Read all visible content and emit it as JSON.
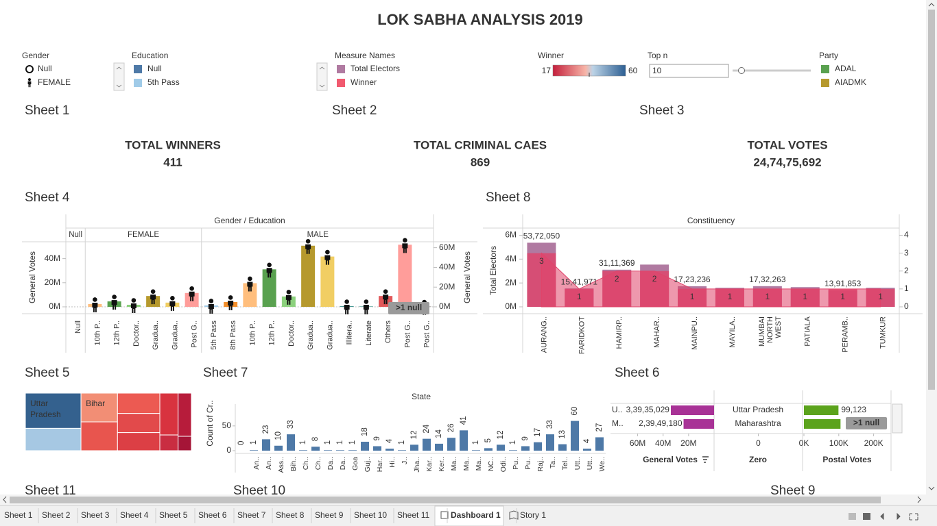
{
  "title": "LOK SABHA ANALYSIS 2019",
  "filters": {
    "gender": {
      "label": "Gender",
      "items": [
        "Null",
        "FEMALE"
      ]
    },
    "education": {
      "label": "Education",
      "items": [
        "Null",
        "5th Pass"
      ],
      "colors": [
        "#4e79a7",
        "#a0cbe8"
      ]
    },
    "measure_names": {
      "label": "Measure Names",
      "items": [
        "Total Electors",
        "Winner"
      ],
      "colors": [
        "#b07aa1",
        "#f15a6f"
      ]
    },
    "winner": {
      "label": "Winner",
      "range": [
        17,
        60
      ]
    },
    "top_n": {
      "label": "Top n",
      "value": 10
    },
    "party": {
      "label": "Party",
      "items": [
        "ADAL",
        "AIADMK"
      ],
      "colors": [
        "#59a14f",
        "#b6992d"
      ]
    }
  },
  "kpis": [
    {
      "sheet": "Sheet 1",
      "label": "TOTAL WINNERS",
      "value": "411"
    },
    {
      "sheet": "Sheet 2",
      "label": "TOTAL CRIMINAL CAES",
      "value": "869"
    },
    {
      "sheet": "Sheet 3",
      "label": "TOTAL VOTES",
      "value": "24,74,75,692"
    }
  ],
  "chart_data": [
    {
      "sheet": "Sheet 4",
      "type": "bar",
      "title": "Gender / Education",
      "ylabel": "General Votes",
      "y2label": "General Votes",
      "ylim": [
        0,
        54000000
      ],
      "yticks": [
        {
          "value": 0,
          "label": "0M"
        },
        {
          "value": 20000000,
          "label": "20M"
        },
        {
          "value": 40000000,
          "label": "40M"
        }
      ],
      "y2lim": [
        0,
        66000000
      ],
      "y2ticks": [
        {
          "value": 0,
          "label": "0M"
        },
        {
          "value": 20000000,
          "label": "20M"
        },
        {
          "value": 40000000,
          "label": "40M"
        },
        {
          "value": 60000000,
          "label": "60M"
        }
      ],
      "groups": [
        {
          "name": "Null",
          "axis": "y",
          "categories": [
            "Null"
          ],
          "values": [
            null
          ],
          "colors": [
            "#4e79a7"
          ]
        },
        {
          "name": "FEMALE",
          "axis": "y",
          "categories": [
            "10th P..",
            "12th P..",
            "Doctor..",
            "Gradua..",
            "Gradua..",
            "Post G.."
          ],
          "values": [
            2300000,
            4500000,
            1700000,
            9000000,
            3500000,
            11500000
          ],
          "colors": [
            "#ffbe7d",
            "#59a14f",
            "#8cd17d",
            "#b6992d",
            "#f1ce63",
            "#ff9d9a"
          ]
        },
        {
          "name": "MALE",
          "axis": "y2",
          "categories": [
            "5th Pass",
            "8th Pass",
            "10th P..",
            "12th P..",
            "Doctor..",
            "Gradua..",
            "Gradua..",
            "Illitera..",
            "Literate",
            "Others",
            "Post G..",
            "Post G.."
          ],
          "values": [
            1400000,
            4900000,
            24000000,
            38000000,
            10500000,
            62000000,
            51000000,
            700000,
            700000,
            11000000,
            63000000,
            300000
          ],
          "colors": [
            "#a0cbe8",
            "#f28e2b",
            "#ffbe7d",
            "#59a14f",
            "#8cd17d",
            "#b6992d",
            "#f1ce63",
            "#499894",
            "#86bcb6",
            "#e15759",
            "#ff9d9a",
            "#79706e"
          ]
        }
      ],
      "annotation": ">1 null"
    },
    {
      "sheet": "Sheet 8",
      "type": "bar_area",
      "title": "Constituency",
      "ylabel": "Total Electors",
      "categories": [
        "AURANG..",
        "FARIDKOT",
        "HAMIRP..",
        "MAHAR..",
        "MAINPU..",
        "MAYILA..",
        "MUMBAI NORTH WEST",
        "PATIALA",
        "PERAMB..",
        "TUMKUR"
      ],
      "ylim": [
        0,
        6600000
      ],
      "yticks": [
        {
          "value": 0,
          "label": "0M"
        },
        {
          "value": 2000000,
          "label": "2M"
        },
        {
          "value": 4000000,
          "label": "4M"
        },
        {
          "value": 6000000,
          "label": "6M"
        }
      ],
      "y2lim": [
        0,
        4.4
      ],
      "y2ticks": [
        0,
        1,
        2,
        3,
        4
      ],
      "series": [
        {
          "name": "Total Electors",
          "color": "#b07aa1",
          "values": [
            5372050,
            1541971,
            3111369,
            3540000,
            1723236,
            1600000,
            1732263,
            1650000,
            1391853,
            1600000
          ],
          "value_labels": [
            "53,72,050",
            "15,41,971",
            "31,11,369",
            null,
            "17,23,236",
            null,
            "17,32,263",
            null,
            "13,91,853",
            null
          ]
        },
        {
          "name": "Winner",
          "color": "#e0436a",
          "axis": "y2",
          "values": [
            3,
            1,
            2,
            2,
            1,
            1,
            1,
            1,
            1,
            1
          ]
        }
      ]
    },
    {
      "sheet": "Sheet 7",
      "type": "bar",
      "title": "State",
      "ylabel": "Count of Cr..",
      "color": "#4e79a7",
      "categories": [
        null,
        "An..",
        "An..",
        "Ass..",
        "Bih..",
        "Ch..",
        "Ch..",
        "Da..",
        "Da..",
        "Goa",
        "Guj..",
        "Har..",
        "Hi..",
        "J..",
        "Jha..",
        "Kar..",
        "Ker..",
        "Ma..",
        "Ma..",
        "Ma..",
        "NC..",
        "Odi..",
        "Pu..",
        "Pu..",
        "Raj..",
        "Ta..",
        "Tel..",
        "Utt..",
        "Utt..",
        "We.."
      ],
      "values": [
        0,
        1,
        23,
        10,
        33,
        1,
        8,
        1,
        1,
        1,
        18,
        9,
        4,
        1,
        12,
        24,
        14,
        26,
        41,
        1,
        5,
        12,
        1,
        9,
        17,
        33,
        13,
        60,
        4,
        27
      ],
      "ylim": [
        0,
        94
      ],
      "yticks": [
        0,
        50
      ]
    },
    {
      "sheet": "Sheet 6",
      "type": "hbar",
      "categories": [
        "Uttar Pradesh",
        "Maharashtra"
      ],
      "row_labels": [
        "U..",
        "M.."
      ],
      "columns": [
        {
          "label": "General Votes",
          "color": "#a83296",
          "xlim": [
            0,
            70000000
          ],
          "reversed": true,
          "xticks": [
            {
              "value": 20000000,
              "label": "20M"
            },
            {
              "value": 40000000,
              "label": "40M"
            },
            {
              "value": 60000000,
              "label": "60M"
            }
          ],
          "values": [
            33935029,
            23949180
          ],
          "value_labels": [
            "3,39,35,029",
            "2,39,49,180"
          ]
        },
        {
          "label": "Zero",
          "xlim": [
            -1,
            1
          ],
          "xticks": [
            0
          ]
        },
        {
          "label": "Postal Votes",
          "color": "#5ba31c",
          "xlim": [
            0,
            250000
          ],
          "xticks": [
            {
              "value": 0,
              "label": "0K"
            },
            {
              "value": 100000,
              "label": "100K"
            },
            {
              "value": 200000,
              "label": "200K"
            }
          ],
          "values": [
            99123,
            105000
          ],
          "value_labels": [
            "99,123",
            null
          ]
        }
      ],
      "annotation": ">1 null"
    },
    {
      "sheet": "Sheet 5",
      "type": "treemap",
      "labels": [
        "Uttar Pradesh",
        null,
        "Bihar",
        null,
        null,
        null,
        null,
        null,
        null,
        null,
        null
      ],
      "values": [
        41,
        26,
        22,
        22,
        18,
        17,
        16,
        16,
        6,
        12,
        4
      ],
      "colors": [
        "#34618e",
        "#a6c8e3",
        "#f28e75",
        "#e8554e",
        "#ec5a52",
        "#e24a4b",
        "#dc3f45",
        "#d8333f",
        "#c92d41",
        "#b71c3b",
        "#a51537"
      ]
    }
  ],
  "bottom_sheets": [
    "Sheet 11",
    "Sheet 10",
    "Sheet 9"
  ],
  "tabs": [
    "Sheet 1",
    "Sheet 2",
    "Sheet 3",
    "Sheet 4",
    "Sheet 5",
    "Sheet 6",
    "Sheet 7",
    "Sheet 8",
    "Sheet 9",
    "Sheet 10",
    "Sheet 11",
    "Dashboard 1",
    "Story 1"
  ]
}
